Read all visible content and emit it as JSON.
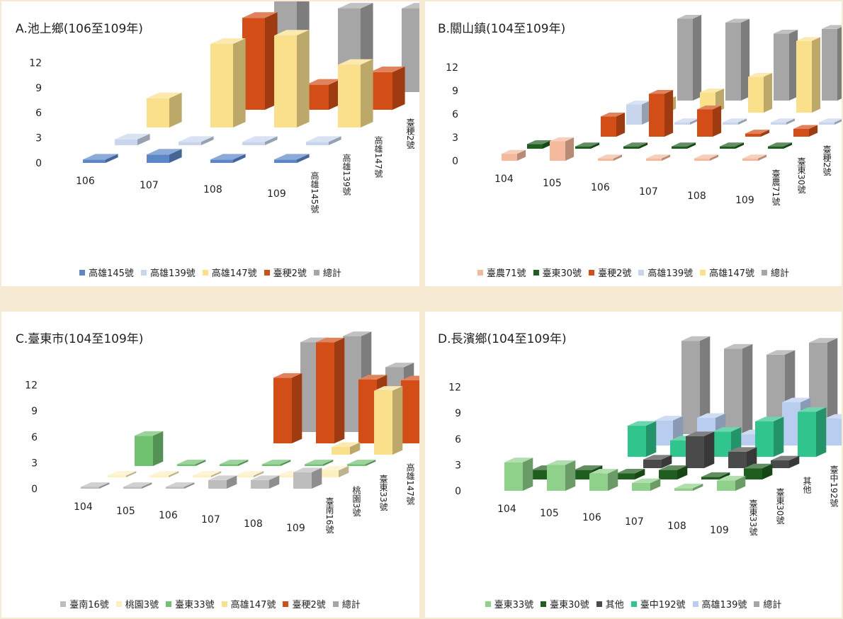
{
  "chart_data": [
    {
      "type": "bar",
      "title": "A.池上鄉(106至109年)",
      "ylim": [
        0,
        12
      ],
      "yticks": [
        "12",
        "9",
        "6",
        "3",
        "0"
      ],
      "categories": [
        "106",
        "107",
        "108",
        "109"
      ],
      "series": [
        {
          "name": "高雄145號",
          "color": "#5b86c8",
          "values": [
            0.4,
            1.0,
            0.4,
            0.4
          ]
        },
        {
          "name": "高雄139號",
          "color": "#c7d6ec",
          "values": [
            0.7,
            0.4,
            0.4,
            0.4
          ]
        },
        {
          "name": "高雄147號",
          "color": "#fbe08c",
          "values": [
            3.5,
            10,
            11,
            7.5
          ]
        },
        {
          "name": "臺稉2號",
          "color": "#d24e16",
          "values": [
            0,
            11,
            3,
            4.5
          ]
        },
        {
          "name": "總計",
          "color": "#a6a6a6",
          "values": [
            0,
            11,
            10,
            10
          ]
        }
      ]
    },
    {
      "type": "bar",
      "title": "B.關山鎮(104至109年)",
      "ylim": [
        0,
        12
      ],
      "yticks": [
        "12",
        "9",
        "6",
        "3",
        "0"
      ],
      "categories": [
        "104",
        "105",
        "106",
        "107",
        "108",
        "109"
      ],
      "series": [
        {
          "name": "臺農71號",
          "color": "#f4b99c",
          "values": [
            0.9,
            2.5,
            0.3,
            0.3,
            0.3,
            0.3
          ]
        },
        {
          "name": "臺東30號",
          "color": "#1f5e1f",
          "values": [
            0.6,
            0.3,
            0.3,
            0.3,
            0.3,
            0.3
          ]
        },
        {
          "name": "臺稉2號",
          "color": "#d24e16",
          "values": [
            0,
            2.6,
            5.5,
            3.5,
            0.4,
            1.0
          ]
        },
        {
          "name": "高雄139號",
          "color": "#c7d6ec",
          "values": [
            0,
            2.6,
            0.3,
            0.3,
            0.3,
            0.3
          ]
        },
        {
          "name": "高雄147號",
          "color": "#fbe08c",
          "values": [
            0,
            1.6,
            2.6,
            4.6,
            9.2,
            8.4
          ]
        },
        {
          "name": "總計",
          "color": "#a6a6a6",
          "values": [
            0,
            10.5,
            10.0,
            8.6,
            9.2,
            7.9
          ]
        }
      ]
    },
    {
      "type": "bar",
      "title": "C.臺東市(104至109年)",
      "ylim": [
        0,
        12
      ],
      "yticks": [
        "12",
        "9",
        "6",
        "3",
        "0"
      ],
      "categories": [
        "104",
        "105",
        "106",
        "107",
        "108",
        "109"
      ],
      "series": [
        {
          "name": "臺南16號",
          "color": "#bdbdbd",
          "values": [
            0.2,
            0.2,
            0.2,
            1.0,
            1.0,
            1.9
          ]
        },
        {
          "name": "桃園3號",
          "color": "#fcefc0",
          "values": [
            0.2,
            0.2,
            0.2,
            0.2,
            0.2,
            0.8
          ]
        },
        {
          "name": "臺東33號",
          "color": "#70c170",
          "values": [
            3.5,
            0.2,
            0.2,
            0.2,
            0.2,
            0.2
          ]
        },
        {
          "name": "高雄147號",
          "color": "#fbe08c",
          "values": [
            0,
            0,
            0,
            0,
            0.9,
            7.4
          ]
        },
        {
          "name": "臺稉2號",
          "color": "#d24e16",
          "values": [
            0,
            0,
            7.6,
            11.7,
            7.4,
            7.3
          ]
        },
        {
          "name": "總計",
          "color": "#a6a6a6",
          "values": [
            0,
            0,
            10.4,
            11.1,
            7.5,
            7.7
          ]
        }
      ]
    },
    {
      "type": "bar",
      "title": "D.長濱鄉(104至109年)",
      "ylim": [
        0,
        12
      ],
      "yticks": [
        "12",
        "9",
        "6",
        "3",
        "0"
      ],
      "categories": [
        "104",
        "105",
        "106",
        "107",
        "108",
        "109"
      ],
      "series": [
        {
          "name": "臺東33號",
          "color": "#8fd08a",
          "values": [
            3.3,
            3.0,
            2.0,
            0.9,
            0.3,
            1.2
          ]
        },
        {
          "name": "臺東30號",
          "color": "#1f5e1f",
          "values": [
            1.1,
            1.1,
            0.7,
            1.1,
            0.3,
            1.3
          ]
        },
        {
          "name": "其他",
          "color": "#4a4a4a",
          "values": [
            0,
            0,
            1.0,
            3.7,
            1.9,
            0.9
          ]
        },
        {
          "name": "臺中192號",
          "color": "#2fc58c",
          "values": [
            0,
            3.6,
            1.9,
            2.9,
            4.1,
            5.2
          ]
        },
        {
          "name": "高雄139號",
          "color": "#b9cdf0",
          "values": [
            0,
            2.9,
            3.2,
            1.3,
            5.0,
            3.1
          ]
        },
        {
          "name": "總計",
          "color": "#a6a6a6",
          "values": [
            0,
            10.8,
            9.9,
            9.2,
            10.6,
            9.8
          ]
        }
      ]
    }
  ]
}
